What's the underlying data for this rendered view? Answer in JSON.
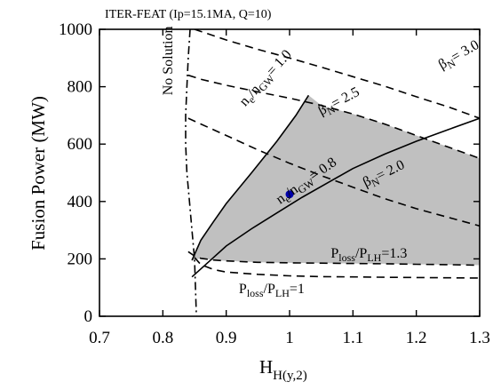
{
  "chart_data": {
    "type": "line",
    "title": "ITER-FEAT (Ip=15.1MA, Q=10)",
    "xlabel": {
      "main": "H",
      "sub": "H(y,2)"
    },
    "ylabel": "Fusion Power (MW)",
    "xlim": [
      0.7,
      1.3
    ],
    "ylim": [
      0,
      1000
    ],
    "xticks": [
      0.7,
      0.8,
      0.9,
      1.0,
      1.1,
      1.2,
      1.3
    ],
    "xtick_labels": [
      "0.7",
      "0.8",
      "0.9",
      "1",
      "1.1",
      "1.2",
      "1.3"
    ],
    "yticks": [
      0,
      200,
      400,
      600,
      800,
      1000
    ],
    "ytick_labels": [
      "0",
      "200",
      "400",
      "600",
      "800",
      "1000"
    ],
    "grid": false,
    "colors": {
      "shade": "#c0c0c0",
      "line": "#000000",
      "marker": "#0000aa"
    },
    "series": [
      {
        "style": "solid",
        "x": [
          0.846,
          0.86,
          0.88,
          0.9,
          0.94,
          0.98,
          1.01,
          1.03
        ],
        "y": [
          195,
          265,
          330,
          393,
          500,
          610,
          700,
          770
        ]
      },
      {
        "style": "solid",
        "x": [
          0.846,
          0.86,
          0.88,
          0.9,
          0.94,
          0.98,
          1.02,
          1.06,
          1.1,
          1.15,
          1.2,
          1.25,
          1.3
        ],
        "y": [
          137,
          165,
          205,
          245,
          305,
          360,
          415,
          465,
          515,
          565,
          610,
          650,
          690
        ]
      },
      {
        "style": "dashed",
        "x": [
          0.85,
          0.87,
          0.9,
          0.95,
          1.0,
          1.05,
          1.1,
          1.15,
          1.2,
          1.25,
          1.3
        ],
        "y": [
          1000,
          985,
          963,
          930,
          900,
          868,
          835,
          802,
          765,
          730,
          690
        ]
      },
      {
        "style": "dashed",
        "x": [
          0.84,
          0.86,
          0.9,
          0.95,
          1.0,
          1.05,
          1.1,
          1.15,
          1.2,
          1.25,
          1.3
        ],
        "y": [
          840,
          826,
          805,
          782,
          760,
          735,
          705,
          670,
          630,
          590,
          550
        ]
      },
      {
        "style": "dashed",
        "x": [
          0.84,
          0.86,
          0.9,
          0.95,
          1.0,
          1.05,
          1.1,
          1.15,
          1.2,
          1.25,
          1.3
        ],
        "y": [
          690,
          670,
          630,
          580,
          533,
          490,
          450,
          410,
          375,
          345,
          315
        ]
      },
      {
        "style": "dashed",
        "x": [
          0.84,
          0.85,
          0.86,
          0.88,
          0.9,
          0.95,
          1.0,
          1.05,
          1.1,
          1.15,
          1.2,
          1.25,
          1.3
        ],
        "y": [
          225,
          210,
          202,
          196,
          193,
          188,
          186,
          185,
          184,
          183,
          181,
          180,
          178
        ]
      },
      {
        "style": "dashed",
        "x": [
          0.85,
          0.86,
          0.88,
          0.9,
          0.95,
          1.0,
          1.05,
          1.1,
          1.15,
          1.2,
          1.25,
          1.3
        ],
        "y": [
          205,
          180,
          163,
          154,
          146,
          141,
          138,
          137,
          136,
          135,
          134,
          133
        ]
      },
      {
        "style": "dashdot",
        "x": [
          0.843,
          0.84,
          0.838,
          0.836,
          0.836,
          0.838,
          0.842,
          0.846,
          0.85,
          0.853
        ],
        "y": [
          1000,
          900,
          800,
          700,
          600,
          500,
          400,
          300,
          200,
          0
        ]
      }
    ],
    "shaded_region": {
      "x": [
        0.846,
        0.86,
        0.88,
        0.9,
        0.94,
        0.98,
        1.01,
        1.03,
        1.05,
        1.1,
        1.15,
        1.2,
        1.25,
        1.3,
        1.3,
        1.25,
        1.2,
        1.15,
        1.1,
        1.05,
        1.0,
        0.95,
        0.9,
        0.88,
        0.86,
        0.846
      ],
      "y": [
        195,
        265,
        330,
        393,
        500,
        610,
        700,
        770,
        735,
        705,
        670,
        630,
        590,
        550,
        178,
        180,
        181,
        183,
        184,
        185,
        186,
        188,
        193,
        196,
        202,
        195
      ]
    },
    "point": {
      "x": 1.0,
      "y": 425
    },
    "annotations": [
      {
        "text": "No Solution",
        "x": 0.815,
        "y": 770,
        "rotate": -90
      },
      {
        "text": "ne/nGW= 1.0",
        "x": 0.93,
        "y": 730,
        "rotate": -48
      },
      {
        "text": "ne/nGW= 0.8",
        "x": 0.985,
        "y": 390,
        "rotate": -35
      },
      {
        "text": "βN= 3.0",
        "x": 1.24,
        "y": 860,
        "rotate": -30
      },
      {
        "text": "βN= 2.5",
        "x": 1.05,
        "y": 700,
        "rotate": -28
      },
      {
        "text": "βN= 2.0",
        "x": 1.12,
        "y": 450,
        "rotate": -26
      },
      {
        "text": "Ploss/PLH=1.3",
        "x": 1.065,
        "y": 205,
        "rotate": 0
      },
      {
        "text": "Ploss/PLH=1",
        "x": 0.92,
        "y": 80,
        "rotate": 0
      }
    ]
  }
}
